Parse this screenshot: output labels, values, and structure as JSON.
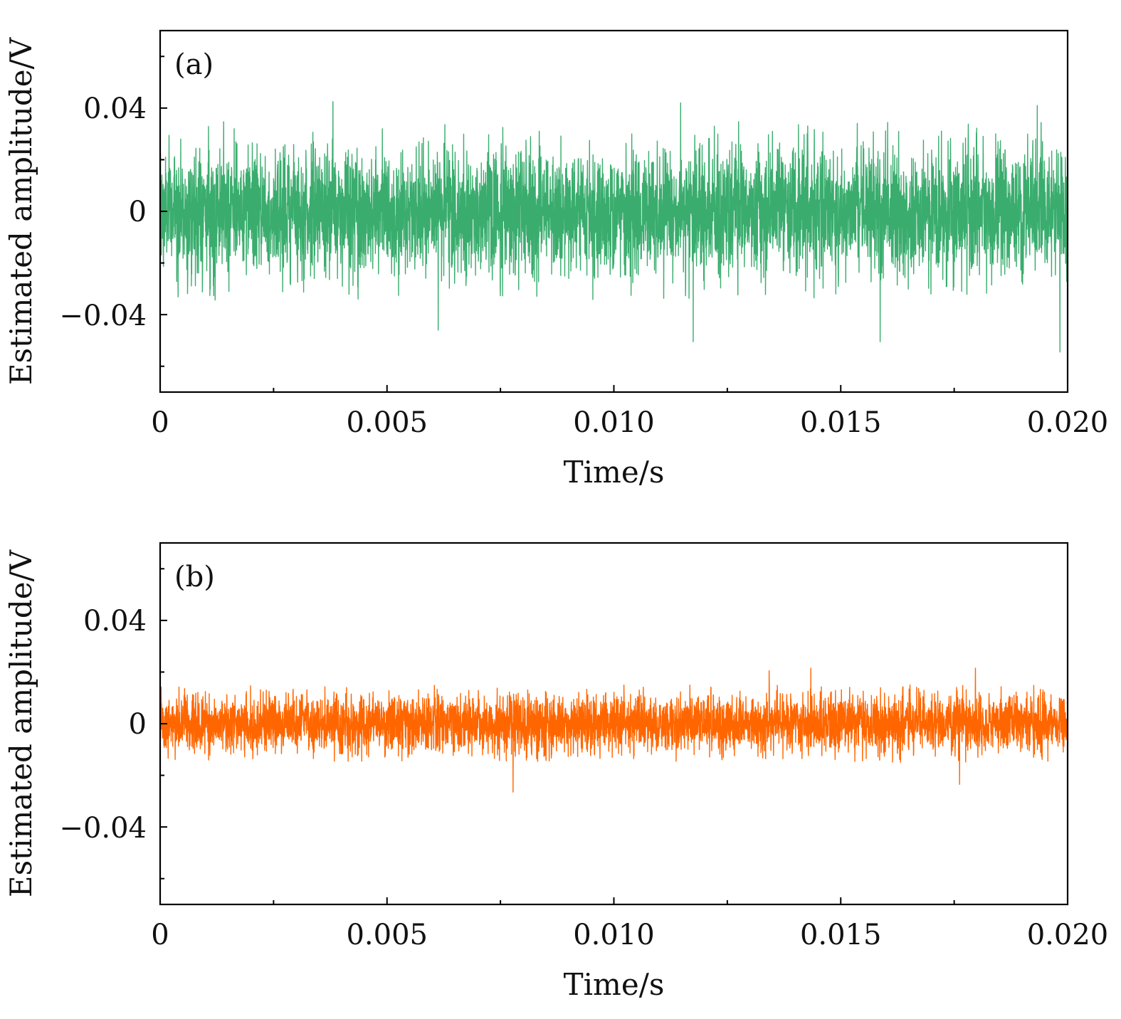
{
  "chart_data": [
    {
      "type": "line",
      "panel_label": "(a)",
      "xlabel": "Time/s",
      "ylabel": "Estimated amplitude/V",
      "xlim": [
        0,
        0.02
      ],
      "ylim": [
        -0.07,
        0.07
      ],
      "xticks": [
        0,
        0.005,
        0.01,
        0.015,
        0.02
      ],
      "xtick_labels": [
        "0",
        "0.005",
        "0.010",
        "0.015",
        "0.020"
      ],
      "yticks": [
        -0.04,
        0,
        0.04
      ],
      "ytick_labels": [
        "−0.04",
        "0",
        "0.04"
      ],
      "grid": false,
      "series": [
        {
          "color": "#3aad6e",
          "description_stats": {
            "typical_peak_abs": 0.028,
            "max": 0.0425,
            "min": -0.0545,
            "rms_estimate": 0.012
          },
          "notable_extremes": [
            {
              "x": 0.00381,
              "y": 0.0425
            },
            {
              "x": 0.01147,
              "y": 0.042
            },
            {
              "x": 0.01933,
              "y": 0.041
            },
            {
              "x": 0.00613,
              "y": -0.046
            },
            {
              "x": 0.01175,
              "y": -0.0505
            },
            {
              "x": 0.01587,
              "y": -0.0505
            },
            {
              "x": 0.01983,
              "y": -0.0545
            }
          ]
        }
      ]
    },
    {
      "type": "line",
      "panel_label": "(b)",
      "xlabel": "Time/s",
      "ylabel": "Estimated amplitude/V",
      "xlim": [
        0,
        0.02
      ],
      "ylim": [
        -0.07,
        0.07
      ],
      "xticks": [
        0,
        0.005,
        0.01,
        0.015,
        0.02
      ],
      "xtick_labels": [
        "0",
        "0.005",
        "0.010",
        "0.015",
        "0.020"
      ],
      "yticks": [
        -0.04,
        0,
        0.04
      ],
      "ytick_labels": [
        "−0.04",
        "0",
        "0.04"
      ],
      "grid": false,
      "series": [
        {
          "color": "#ff6600",
          "description_stats": {
            "typical_peak_abs": 0.012,
            "max": 0.0215,
            "min": -0.0265,
            "rms_estimate": 0.0055
          },
          "notable_extremes": [
            {
              "x": 0.01434,
              "y": 0.0215
            },
            {
              "x": 0.01797,
              "y": 0.0215
            },
            {
              "x": 0.01342,
              "y": 0.0205
            },
            {
              "x": 0.00778,
              "y": -0.0265
            },
            {
              "x": 0.01762,
              "y": -0.0235
            }
          ]
        }
      ]
    }
  ]
}
